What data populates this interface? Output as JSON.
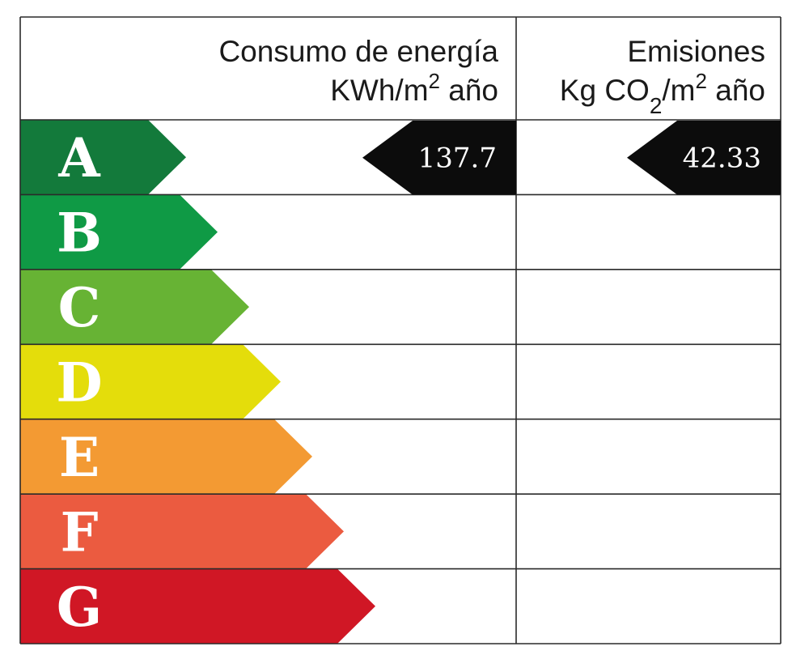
{
  "header": {
    "energy_title": "Consumo de energía",
    "energy_unit_pre": "KWh/m",
    "energy_unit_sup": "2",
    "energy_unit_post": " año",
    "emissions_title": "Emisiones",
    "emissions_unit_pre": "Kg CO",
    "emissions_unit_sub": "2",
    "emissions_unit_mid": "/m",
    "emissions_unit_sup": "2",
    "emissions_unit_post": " año"
  },
  "chart_data": {
    "type": "table",
    "classes": [
      {
        "letter": "A",
        "color": "#137a3b"
      },
      {
        "letter": "B",
        "color": "#0f9a45"
      },
      {
        "letter": "C",
        "color": "#67b334"
      },
      {
        "letter": "D",
        "color": "#e4dd0b"
      },
      {
        "letter": "E",
        "color": "#f39a33"
      },
      {
        "letter": "F",
        "color": "#eb5b40"
      },
      {
        "letter": "G",
        "color": "#d01725"
      }
    ],
    "energy": {
      "class": "A",
      "value": "137.7"
    },
    "emissions": {
      "class": "A",
      "value": "42.33"
    }
  }
}
